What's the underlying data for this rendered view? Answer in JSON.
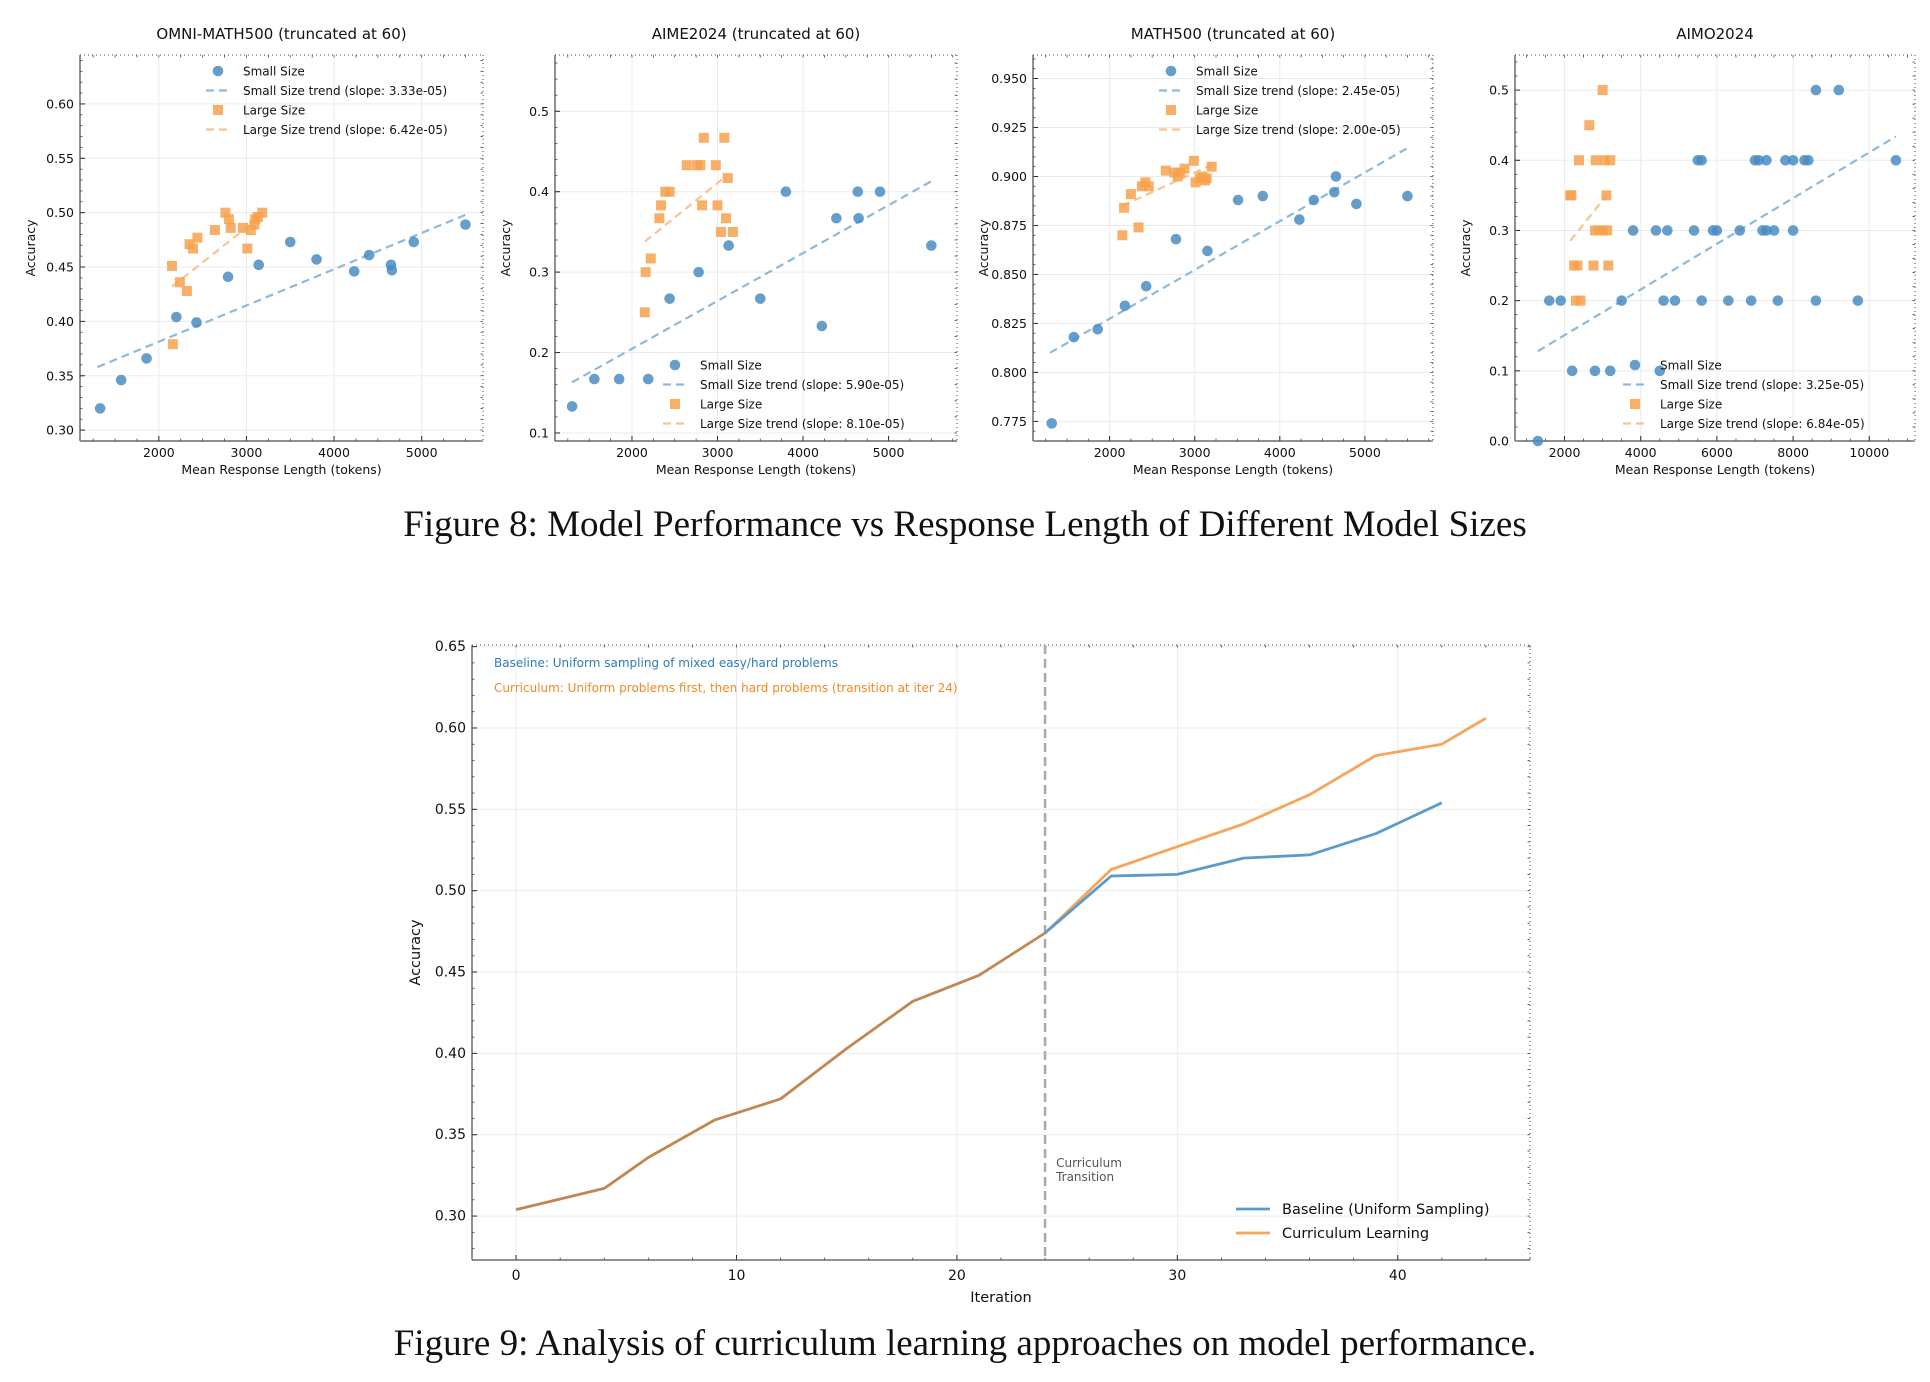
{
  "captions": {
    "fig8": "Figure 8: Model Performance vs Response Length of Different Model Sizes",
    "fig9": "Figure 9: Analysis of curriculum learning approaches on model performance."
  },
  "colors": {
    "small": "#4a8cc2",
    "large": "#f7a24f",
    "small_trend": "#8dbad9",
    "large_trend": "#f8c48f",
    "baseline": "#5b9bcb",
    "curriculum": "#f5a55c",
    "shared": "#c18651",
    "transition": "#aaaaaa",
    "note_baseline": "#2e7bb8",
    "note_curriculum": "#f08a24"
  },
  "chart_data": [
    {
      "id": "omni",
      "type": "scatter",
      "title": "OMNI-MATH500 (truncated at 60)",
      "xlabel": "Mean Response Length (tokens)",
      "ylabel": "Accuracy",
      "xlim": [
        1100,
        5700
      ],
      "ylim": [
        0.29,
        0.645
      ],
      "xticks": [
        2000,
        3000,
        4000,
        5000
      ],
      "yticks": [
        0.3,
        0.35,
        0.4,
        0.45,
        0.5,
        0.55,
        0.6
      ],
      "ytick_format": 2,
      "legend_position": "top",
      "legend": [
        "Small Size",
        "Small Size trend (slope: 3.33e-05)",
        "Large Size",
        "Large Size trend (slope: 6.42e-05)"
      ],
      "small_points": [
        [
          1330,
          0.32
        ],
        [
          1570,
          0.346
        ],
        [
          1860,
          0.366
        ],
        [
          2200,
          0.404
        ],
        [
          2430,
          0.399
        ],
        [
          2790,
          0.441
        ],
        [
          3140,
          0.452
        ],
        [
          3500,
          0.473
        ],
        [
          3800,
          0.457
        ],
        [
          4230,
          0.446
        ],
        [
          4400,
          0.461
        ],
        [
          4650,
          0.452
        ],
        [
          4660,
          0.447
        ],
        [
          4910,
          0.473
        ],
        [
          5500,
          0.489
        ]
      ],
      "small_trend": [
        [
          1300,
          0.358
        ],
        [
          5500,
          0.498
        ]
      ],
      "large_points": [
        [
          2150,
          0.451
        ],
        [
          2160,
          0.379
        ],
        [
          2240,
          0.436
        ],
        [
          2320,
          0.428
        ],
        [
          2350,
          0.471
        ],
        [
          2390,
          0.467
        ],
        [
          2440,
          0.477
        ],
        [
          2640,
          0.484
        ],
        [
          2760,
          0.5
        ],
        [
          2800,
          0.494
        ],
        [
          2820,
          0.486
        ],
        [
          2960,
          0.486
        ],
        [
          3010,
          0.467
        ],
        [
          3050,
          0.484
        ],
        [
          3090,
          0.489
        ],
        [
          3100,
          0.494
        ],
        [
          3130,
          0.496
        ],
        [
          3180,
          0.5
        ]
      ],
      "large_trend": [
        [
          2150,
          0.432
        ],
        [
          3200,
          0.499
        ]
      ]
    },
    {
      "id": "aime",
      "type": "scatter",
      "title": "AIME2024 (truncated at 60)",
      "xlabel": "Mean Response Length (tokens)",
      "ylabel": "Accuracy",
      "xlim": [
        1100,
        5800
      ],
      "ylim": [
        0.09,
        0.57
      ],
      "xticks": [
        2000,
        3000,
        4000,
        5000
      ],
      "yticks": [
        0.1,
        0.2,
        0.3,
        0.4,
        0.5
      ],
      "ytick_format": 1,
      "legend_position": "lower-right",
      "legend": [
        "Small Size",
        "Small Size trend (slope: 5.90e-05)",
        "Large Size",
        "Large Size trend (slope: 8.10e-05)"
      ],
      "small_points": [
        [
          1300,
          0.133
        ],
        [
          1560,
          0.167
        ],
        [
          1850,
          0.167
        ],
        [
          2190,
          0.167
        ],
        [
          2440,
          0.267
        ],
        [
          2780,
          0.3
        ],
        [
          3130,
          0.333
        ],
        [
          3500,
          0.267
        ],
        [
          3800,
          0.4
        ],
        [
          4220,
          0.233
        ],
        [
          4390,
          0.367
        ],
        [
          4640,
          0.4
        ],
        [
          4650,
          0.367
        ],
        [
          4900,
          0.4
        ],
        [
          5500,
          0.333
        ]
      ],
      "small_trend": [
        [
          1300,
          0.163
        ],
        [
          5500,
          0.413
        ]
      ],
      "large_points": [
        [
          2150,
          0.25
        ],
        [
          2160,
          0.3
        ],
        [
          2220,
          0.317
        ],
        [
          2320,
          0.367
        ],
        [
          2340,
          0.383
        ],
        [
          2390,
          0.4
        ],
        [
          2440,
          0.4
        ],
        [
          2640,
          0.433
        ],
        [
          2760,
          0.433
        ],
        [
          2800,
          0.433
        ],
        [
          2820,
          0.383
        ],
        [
          2840,
          0.467
        ],
        [
          2980,
          0.433
        ],
        [
          3000,
          0.383
        ],
        [
          3040,
          0.35
        ],
        [
          3080,
          0.467
        ],
        [
          3100,
          0.367
        ],
        [
          3120,
          0.417
        ],
        [
          3180,
          0.35
        ]
      ],
      "large_trend": [
        [
          2150,
          0.338
        ],
        [
          3050,
          0.415
        ]
      ]
    },
    {
      "id": "math",
      "type": "scatter",
      "title": "MATH500 (truncated at 60)",
      "xlabel": "Mean Response Length (tokens)",
      "ylabel": "Accuracy",
      "xlim": [
        1100,
        5800
      ],
      "ylim": [
        0.765,
        0.962
      ],
      "xticks": [
        2000,
        3000,
        4000,
        5000
      ],
      "yticks": [
        0.775,
        0.8,
        0.825,
        0.85,
        0.875,
        0.9,
        0.925,
        0.95
      ],
      "ytick_format": 3,
      "legend_position": "top",
      "legend": [
        "Small Size",
        "Small Size trend (slope: 2.45e-05)",
        "Large Size",
        "Large Size trend (slope: 2.00e-05)"
      ],
      "small_points": [
        [
          1320,
          0.774
        ],
        [
          1580,
          0.818
        ],
        [
          1860,
          0.822
        ],
        [
          2180,
          0.834
        ],
        [
          2430,
          0.844
        ],
        [
          2780,
          0.868
        ],
        [
          3150,
          0.862
        ],
        [
          3510,
          0.888
        ],
        [
          3800,
          0.89
        ],
        [
          4230,
          0.878
        ],
        [
          4400,
          0.888
        ],
        [
          4640,
          0.892
        ],
        [
          4660,
          0.9
        ],
        [
          4900,
          0.886
        ],
        [
          5500,
          0.89
        ]
      ],
      "small_trend": [
        [
          1300,
          0.81
        ],
        [
          5520,
          0.915
        ]
      ],
      "large_points": [
        [
          2150,
          0.87
        ],
        [
          2170,
          0.884
        ],
        [
          2250,
          0.891
        ],
        [
          2340,
          0.874
        ],
        [
          2380,
          0.895
        ],
        [
          2420,
          0.897
        ],
        [
          2460,
          0.895
        ],
        [
          2660,
          0.903
        ],
        [
          2760,
          0.902
        ],
        [
          2800,
          0.9
        ],
        [
          2830,
          0.902
        ],
        [
          2880,
          0.904
        ],
        [
          2990,
          0.908
        ],
        [
          3010,
          0.897
        ],
        [
          3060,
          0.899
        ],
        [
          3090,
          0.9
        ],
        [
          3120,
          0.898
        ],
        [
          3140,
          0.899
        ],
        [
          3200,
          0.905
        ]
      ],
      "large_trend": [
        [
          2150,
          0.885
        ],
        [
          3200,
          0.906
        ]
      ]
    },
    {
      "id": "aimo",
      "type": "scatter",
      "title": "AIMO2024",
      "xlabel": "Mean Response Length (tokens)",
      "ylabel": "Accuracy",
      "xlim": [
        700,
        11200
      ],
      "ylim": [
        0.0,
        0.55
      ],
      "xticks": [
        2000,
        4000,
        6000,
        8000,
        10000
      ],
      "yticks": [
        0.0,
        0.1,
        0.2,
        0.3,
        0.4,
        0.5
      ],
      "ytick_format": 1,
      "legend_position": "lower-right",
      "legend": [
        "Small Size",
        "Small Size trend (slope: 3.25e-05)",
        "Large Size",
        "Large Size trend (slope: 6.84e-05)"
      ],
      "small_points": [
        [
          1300,
          0.0
        ],
        [
          1600,
          0.2
        ],
        [
          1900,
          0.2
        ],
        [
          2200,
          0.1
        ],
        [
          2800,
          0.1
        ],
        [
          3200,
          0.1
        ],
        [
          3500,
          0.2
        ],
        [
          3800,
          0.3
        ],
        [
          4400,
          0.3
        ],
        [
          4500,
          0.1
        ],
        [
          4600,
          0.2
        ],
        [
          4700,
          0.3
        ],
        [
          4900,
          0.2
        ],
        [
          5400,
          0.3
        ],
        [
          5500,
          0.4
        ],
        [
          5600,
          0.4
        ],
        [
          5600,
          0.2
        ],
        [
          5900,
          0.3
        ],
        [
          6000,
          0.3
        ],
        [
          6300,
          0.2
        ],
        [
          6600,
          0.3
        ],
        [
          6900,
          0.2
        ],
        [
          7000,
          0.4
        ],
        [
          7100,
          0.4
        ],
        [
          7200,
          0.3
        ],
        [
          7300,
          0.3
        ],
        [
          7300,
          0.4
        ],
        [
          7500,
          0.3
        ],
        [
          7600,
          0.2
        ],
        [
          7800,
          0.4
        ],
        [
          8000,
          0.3
        ],
        [
          8000,
          0.4
        ],
        [
          8300,
          0.4
        ],
        [
          8400,
          0.4
        ],
        [
          8600,
          0.5
        ],
        [
          8600,
          0.2
        ],
        [
          9200,
          0.5
        ],
        [
          9700,
          0.2
        ],
        [
          10700,
          0.4
        ]
      ],
      "small_trend": [
        [
          1300,
          0.128
        ],
        [
          10700,
          0.434
        ]
      ],
      "large_points": [
        [
          2150,
          0.35
        ],
        [
          2180,
          0.35
        ],
        [
          2250,
          0.25
        ],
        [
          2300,
          0.2
        ],
        [
          2340,
          0.25
        ],
        [
          2380,
          0.4
        ],
        [
          2420,
          0.2
        ],
        [
          2650,
          0.45
        ],
        [
          2760,
          0.25
        ],
        [
          2800,
          0.3
        ],
        [
          2820,
          0.4
        ],
        [
          2900,
          0.3
        ],
        [
          3000,
          0.5
        ],
        [
          3000,
          0.3
        ],
        [
          3050,
          0.4
        ],
        [
          3100,
          0.35
        ],
        [
          3120,
          0.3
        ],
        [
          3150,
          0.25
        ],
        [
          3200,
          0.4
        ]
      ],
      "large_trend": [
        [
          2150,
          0.285
        ],
        [
          3100,
          0.35
        ]
      ]
    },
    {
      "id": "curriculum",
      "type": "line",
      "xlabel": "Iteration",
      "ylabel": "Accuracy",
      "xlim": [
        -2,
        46
      ],
      "ylim": [
        0.273,
        0.651
      ],
      "xticks": [
        0,
        10,
        20,
        30,
        40
      ],
      "yticks": [
        0.3,
        0.35,
        0.4,
        0.45,
        0.5,
        0.55,
        0.6,
        0.65
      ],
      "ytick_format": 2,
      "transition_iter": 24,
      "transition_label": [
        "Curriculum",
        "Transition"
      ],
      "annotations": [
        "Baseline: Uniform sampling of mixed easy/hard problems",
        "Curriculum: Uniform problems first, then hard problems (transition at iter 24)"
      ],
      "legend": [
        "Baseline (Uniform Sampling)",
        "Curriculum Learning"
      ],
      "legend_position": "lower-right",
      "shared_prefix": {
        "x": [
          0,
          4,
          6,
          9,
          12,
          15,
          18,
          21,
          24
        ],
        "y": [
          0.304,
          0.317,
          0.336,
          0.359,
          0.372,
          0.403,
          0.432,
          0.448,
          0.474
        ]
      },
      "series": [
        {
          "name": "Baseline (Uniform Sampling)",
          "x": [
            24,
            27,
            30,
            33,
            36,
            39,
            42
          ],
          "y": [
            0.474,
            0.509,
            0.51,
            0.52,
            0.522,
            0.535,
            0.554
          ]
        },
        {
          "name": "Curriculum Learning",
          "x": [
            24,
            27,
            30,
            33,
            36,
            39,
            42,
            44
          ],
          "y": [
            0.474,
            0.513,
            0.527,
            0.541,
            0.559,
            0.583,
            0.59,
            0.606
          ]
        }
      ]
    }
  ]
}
